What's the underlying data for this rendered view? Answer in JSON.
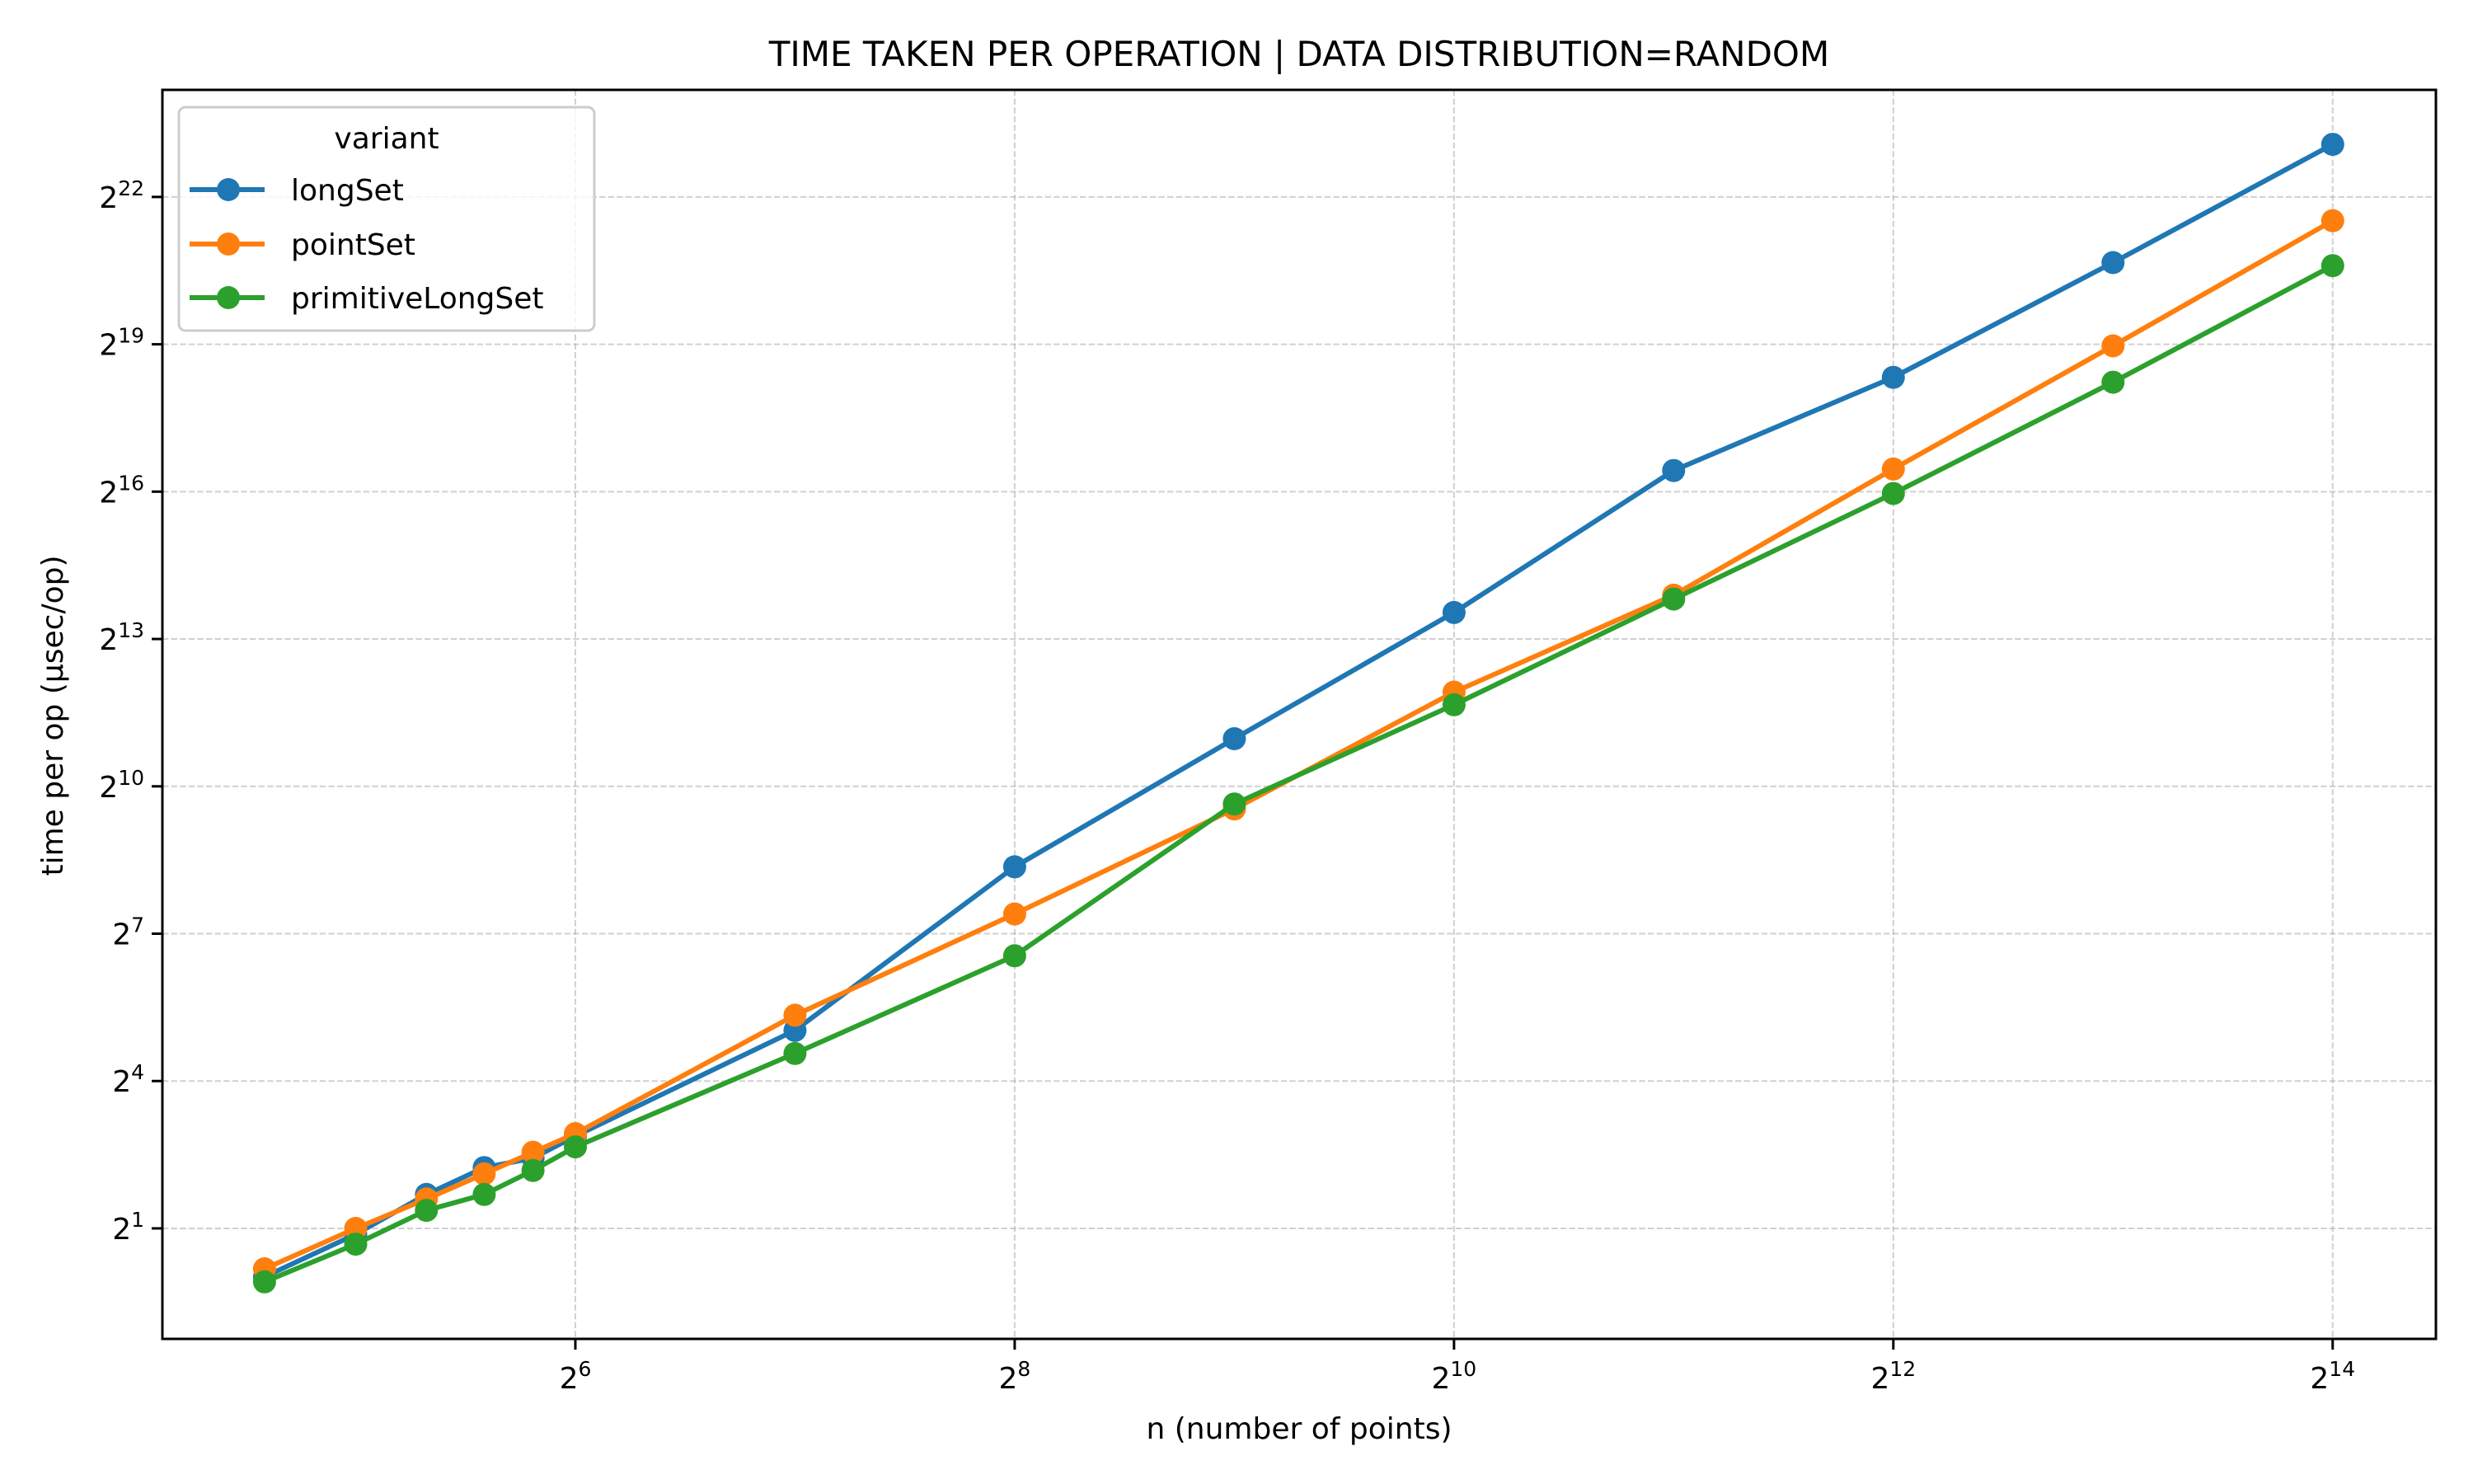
{
  "chart_data": {
    "type": "line",
    "title": "TIME TAKEN PER OPERATION | DATA DISTRIBUTION=RANDOM",
    "xlabel": "n (number of points)",
    "ylabel": "time per op (µsec/op)",
    "xscale": "log2",
    "yscale": "log2",
    "xlim_log2": [
      4.12,
      14.47
    ],
    "ylim_log2": [
      -1.25,
      24.18
    ],
    "grid": true,
    "x": [
      24,
      32,
      40,
      48,
      56,
      64,
      128,
      256,
      512,
      1024,
      2048,
      4096,
      8192,
      16384
    ],
    "x_ticks": [
      {
        "base": "2",
        "exp": "6",
        "log2": 6
      },
      {
        "base": "2",
        "exp": "8",
        "log2": 8
      },
      {
        "base": "2",
        "exp": "10",
        "log2": 10
      },
      {
        "base": "2",
        "exp": "12",
        "log2": 12
      },
      {
        "base": "2",
        "exp": "14",
        "log2": 14
      }
    ],
    "y_ticks": [
      {
        "base": "2",
        "exp": "1",
        "log2": 1
      },
      {
        "base": "2",
        "exp": "4",
        "log2": 4
      },
      {
        "base": "2",
        "exp": "7",
        "log2": 7
      },
      {
        "base": "2",
        "exp": "10",
        "log2": 10
      },
      {
        "base": "2",
        "exp": "13",
        "log2": 13
      },
      {
        "base": "2",
        "exp": "16",
        "log2": 16
      },
      {
        "base": "2",
        "exp": "19",
        "log2": 19
      },
      {
        "base": "2",
        "exp": "22",
        "log2": 22
      }
    ],
    "legend": {
      "title": "variant",
      "placement": "upper-left"
    },
    "series": [
      {
        "name": "longSet",
        "color": "#1f77b4",
        "values": [
          1.01,
          1.84,
          3.23,
          4.72,
          5.39,
          7.36,
          32.7,
          329,
          2006,
          11910,
          88300,
          329000,
          1660000,
          8810000
        ]
      },
      {
        "name": "pointSet",
        "color": "#ff7f0e",
        "values": [
          1.13,
          2.0,
          3.03,
          4.32,
          5.86,
          7.62,
          40.5,
          169,
          744,
          3870,
          15200,
          90200,
          513000,
          3000000
        ]
      },
      {
        "name": "primitiveLongSet",
        "color": "#2ca02c",
        "values": [
          0.94,
          1.6,
          2.58,
          3.23,
          4.53,
          6.32,
          23.6,
          93.7,
          798,
          3240,
          14400,
          63800,
          307000,
          1590000
        ]
      }
    ]
  }
}
